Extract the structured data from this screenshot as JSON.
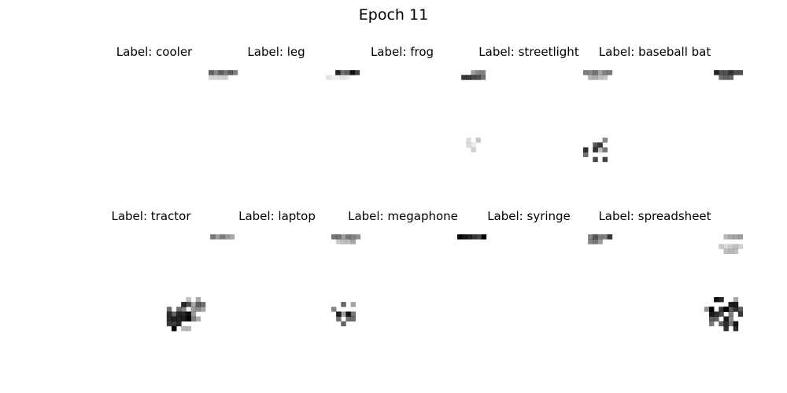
{
  "figure": {
    "title": "Epoch 11",
    "label_prefix": "Label: ",
    "panels": [
      {
        "label": "cooler",
        "sample": "faint-stroke-top"
      },
      {
        "label": "leg",
        "sample": "horizontal-line-top"
      },
      {
        "label": "frog",
        "sample": "stroke-top-with-dots"
      },
      {
        "label": "streetlight",
        "sample": "stroke-top-with-scribble"
      },
      {
        "label": "baseball bat",
        "sample": "dark-stroke-top"
      },
      {
        "label": "tractor",
        "sample": "line-top-with-cluster"
      },
      {
        "label": "laptop",
        "sample": "stroke-top-with-scribble"
      },
      {
        "label": "megaphone",
        "sample": "dark-line-top"
      },
      {
        "label": "syringe",
        "sample": "stroke-top"
      },
      {
        "label": "spreadsheet",
        "sample": "strokes-with-large-cluster"
      }
    ],
    "colors": {
      "background": "#ffffff",
      "ink": "#000000",
      "colormap": "grayscale-inverted"
    }
  }
}
